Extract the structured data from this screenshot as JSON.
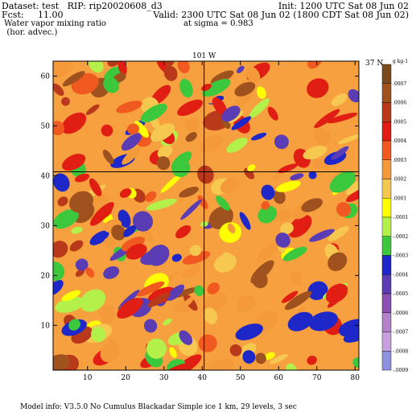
{
  "header": {
    "dataset_line": "Dataset: test   RIP: rip20020608_d3",
    "fcst_line": "Fcst:     11.00",
    "field_line1": " Water vapor mixing ratio",
    "field_line2": "  (hor. advec.)",
    "init_line": "Init: 1200 UTC Sat 08 Jun 02",
    "valid_line": "Valid: 2300 UTC Sat 08 Jun 02 (1800 CDT Sat 08 Jun 02)",
    "sigma_line": "at sigma = 0.983"
  },
  "footer": {
    "model_info": "Model info: V3.5.0 No Cumulus Blackadar  Simple ice    1 km,  29 levels,     3 sec"
  },
  "chart_data": {
    "type": "heatmap",
    "title": "Water vapor mixing ratio (hor. advec.)",
    "x_ticks": [
      10,
      20,
      30,
      40,
      50,
      60,
      70,
      80
    ],
    "y_ticks": [
      10,
      20,
      30,
      40,
      50,
      60
    ],
    "xlim": [
      1,
      81
    ],
    "ylim": [
      1,
      63
    ],
    "longitude_line_label": "101 W",
    "latitude_line_label": "37 N",
    "longitude_line_x": 40.5,
    "latitude_line_y": 40.8,
    "colorbar_unit": "g kg-1",
    "colorbar_labels": [
      ".0007",
      ".0006",
      ".0005",
      ".0004",
      ".0003",
      ".0002",
      ".0001",
      "-.0001",
      "-.0002",
      "-.0003",
      "-.0004",
      "-.0005",
      "-.0006",
      "-.0007",
      "-.0008",
      "-.0009"
    ],
    "colorbar_colors": [
      "#7a4a1e",
      "#a0521e",
      "#b83a1a",
      "#e01e14",
      "#f05a20",
      "#f49a3a",
      "#f6c850",
      "#ffff00",
      "#b4f04a",
      "#3cc83c",
      "#1e28c8",
      "#5a3cb4",
      "#8c50b4",
      "#b482c8",
      "#c8a0dc",
      "#9090e0"
    ]
  }
}
